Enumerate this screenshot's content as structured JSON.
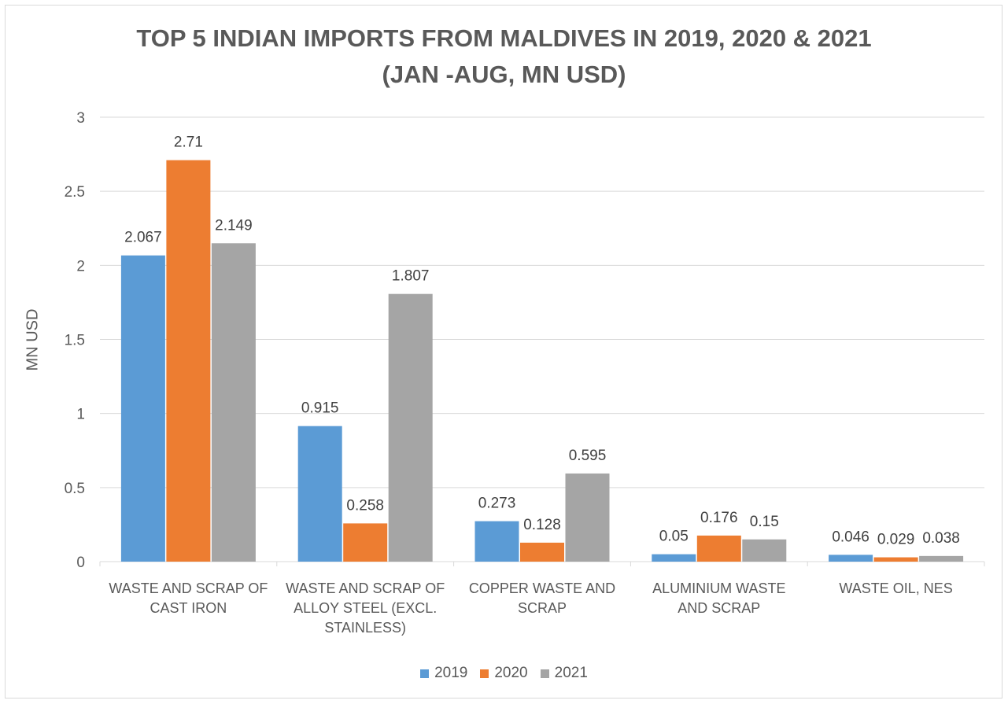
{
  "chart_data": {
    "type": "bar",
    "title_lines": [
      "TOP 5 INDIAN IMPORTS FROM MALDIVES IN 2019, 2020 & 2021",
      "(JAN -AUG, MN USD)"
    ],
    "xlabel": "",
    "ylabel": "MN USD",
    "ylim": [
      0,
      3
    ],
    "yticks": [
      "0",
      "0.5",
      "1",
      "1.5",
      "2",
      "2.5",
      "3"
    ],
    "grid": true,
    "legend_position": "bottom",
    "categories": [
      [
        "WASTE AND SCRAP OF",
        "CAST IRON"
      ],
      [
        "WASTE AND SCRAP OF",
        "ALLOY STEEL (EXCL.",
        "STAINLESS)"
      ],
      [
        "COPPER WASTE AND",
        "SCRAP"
      ],
      [
        "ALUMINIUM WASTE",
        "AND SCRAP"
      ],
      [
        "WASTE OIL, NES"
      ]
    ],
    "series": [
      {
        "name": "2019",
        "color": "#5b9bd5",
        "values": [
          2.067,
          0.915,
          0.273,
          0.05,
          0.046
        ],
        "labels": [
          "2.067",
          "0.915",
          "0.273",
          "0.05",
          "0.046"
        ]
      },
      {
        "name": "2020",
        "color": "#ed7d31",
        "values": [
          2.71,
          0.258,
          0.128,
          0.176,
          0.029
        ],
        "labels": [
          "2.71",
          "0.258",
          "0.128",
          "0.176",
          "0.029"
        ]
      },
      {
        "name": "2021",
        "color": "#a5a5a5",
        "values": [
          2.149,
          1.807,
          0.595,
          0.15,
          0.038
        ],
        "labels": [
          "2.149",
          "1.807",
          "0.595",
          "0.15",
          "0.038"
        ]
      }
    ]
  }
}
